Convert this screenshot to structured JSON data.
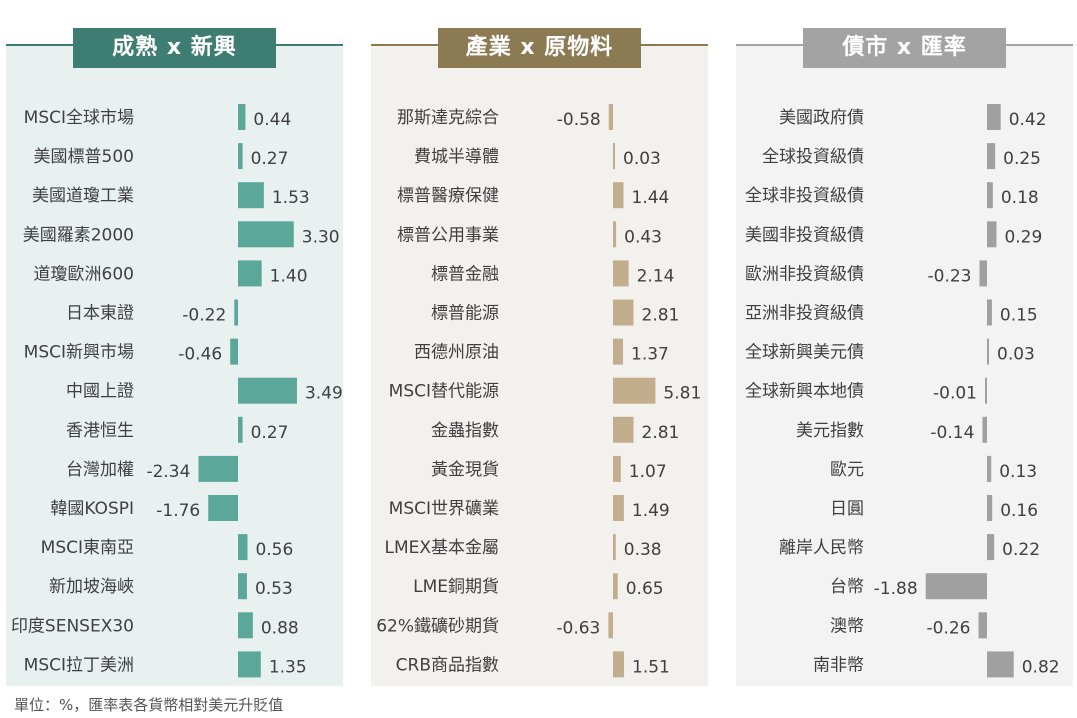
{
  "footnote": "單位：%，匯率表各貨幣相對美元升貶值",
  "chart_data": [
    {
      "type": "bar",
      "orientation": "horizontal",
      "title": "成熟 x 新興",
      "color": "#5BA89B",
      "title_bg": "#3E7D72",
      "panel_bg": "#E8F1EF",
      "categories": [
        "MSCI全球市場",
        "美國標普500",
        "美國道瓊工業",
        "美國羅素2000",
        "道瓊歐洲600",
        "日本東證",
        "MSCI新興市場",
        "中國上證",
        "香港恒生",
        "台灣加權",
        "韓國KOSPI",
        "MSCI東南亞",
        "新加坡海峽",
        "印度SENSEX30",
        "MSCI拉丁美洲"
      ],
      "values": [
        0.44,
        0.27,
        1.53,
        3.3,
        1.4,
        -0.22,
        -0.46,
        3.49,
        0.27,
        -2.34,
        -1.76,
        0.56,
        0.53,
        0.88,
        1.35
      ],
      "labels": [
        "0.44",
        "0.27",
        "1.53",
        "3.30",
        "1.40",
        "-0.22",
        "-0.46",
        "3.49",
        "0.27",
        "-2.34",
        "-1.76",
        "0.56",
        "0.53",
        "0.88",
        "1.35"
      ]
    },
    {
      "type": "bar",
      "orientation": "horizontal",
      "title": "產業 x 原物料",
      "color": "#C2AE8D",
      "title_bg": "#8C7A52",
      "panel_bg": "#F3F1ED",
      "categories": [
        "那斯達克綜合",
        "費城半導體",
        "標普醫療保健",
        "標普公用事業",
        "標普金融",
        "標普能源",
        "西德州原油",
        "MSCI替代能源",
        "金蟲指數",
        "黃金現貨",
        "MSCI世界礦業",
        "LMEX基本金屬",
        "LME銅期貨",
        "62%鐵礦砂期貨",
        "CRB商品指數"
      ],
      "values": [
        -0.58,
        0.03,
        1.44,
        0.43,
        2.14,
        2.81,
        1.37,
        5.81,
        2.81,
        1.07,
        1.49,
        0.38,
        0.65,
        -0.63,
        1.51
      ],
      "labels": [
        "-0.58",
        "0.03",
        "1.44",
        "0.43",
        "2.14",
        "2.81",
        "1.37",
        "5.81",
        "2.81",
        "1.07",
        "1.49",
        "0.38",
        "0.65",
        "-0.63",
        "1.51"
      ]
    },
    {
      "type": "bar",
      "orientation": "horizontal",
      "title": "債市 x 匯率",
      "color": "#A0A0A0",
      "title_bg": "#A3A3A3",
      "panel_bg": "#F3F3F3",
      "categories": [
        "美國政府債",
        "全球投資級債",
        "全球非投資級債",
        "美國非投資級債",
        "歐洲非投資級債",
        "亞洲非投資級債",
        "全球新興美元債",
        "全球新興本地債",
        "美元指數",
        "歐元",
        "日圓",
        "離岸人民幣",
        "台幣",
        "澳幣",
        "南非幣"
      ],
      "values": [
        0.42,
        0.25,
        0.18,
        0.29,
        -0.23,
        0.15,
        0.03,
        -0.01,
        -0.14,
        0.13,
        0.16,
        0.22,
        -1.88,
        -0.26,
        0.82
      ],
      "labels": [
        "0.42",
        "0.25",
        "0.18",
        "0.29",
        "-0.23",
        "0.15",
        "0.03",
        "-0.01",
        "-0.14",
        "0.13",
        "0.16",
        "0.22",
        "-1.88",
        "-0.26",
        "0.82"
      ]
    }
  ]
}
